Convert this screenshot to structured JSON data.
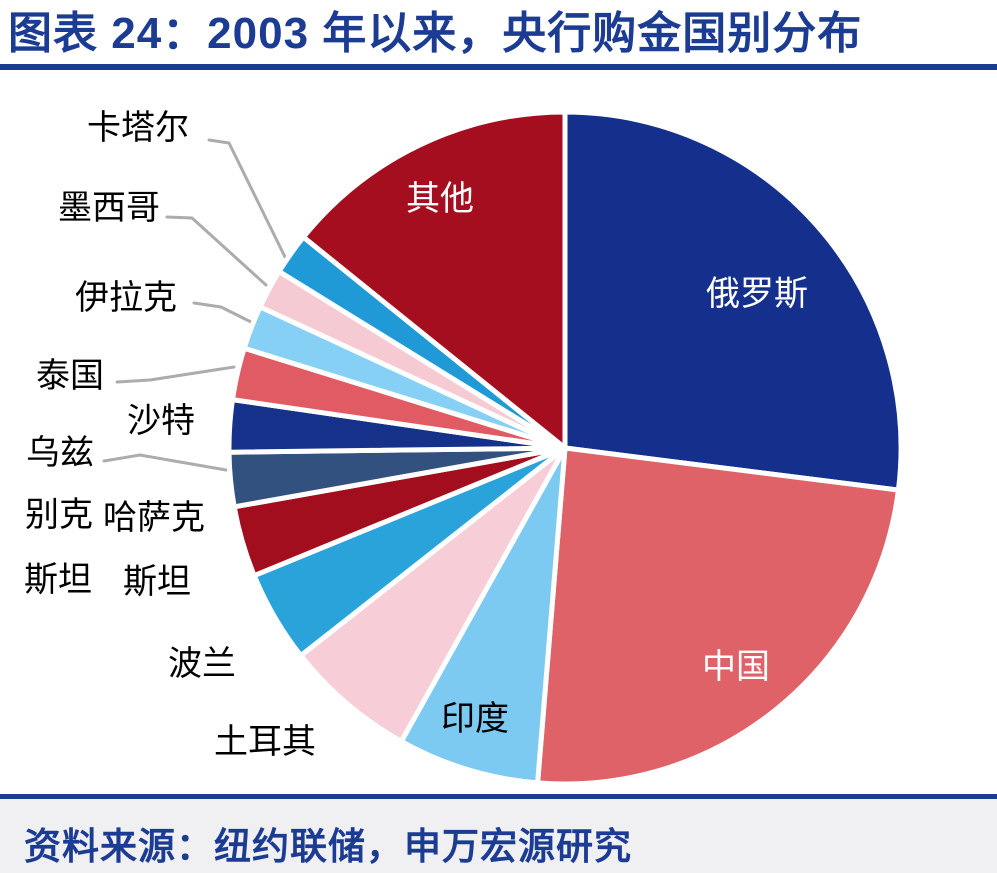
{
  "header": {
    "title": "图表 24：2003 年以来，央行购金国别分布"
  },
  "chart_data": {
    "type": "pie",
    "title": "2003 年以来，央行购金国别分布",
    "figure_number": "图表 24",
    "legend_position": "none",
    "start_angle_deg": 0,
    "direction": "clockwise",
    "value_format": "percent_share_estimated_from_arc_angles",
    "slices": [
      {
        "id": "russia",
        "label": "俄罗斯",
        "value": 27.0,
        "color": "#14308C",
        "label_placement": "inside-white"
      },
      {
        "id": "china",
        "label": "中国",
        "value": 24.3,
        "color": "#DE6267",
        "label_placement": "inside-white"
      },
      {
        "id": "india",
        "label": "印度",
        "value": 6.8,
        "color": "#7CC9F1",
        "label_placement": "inside-black"
      },
      {
        "id": "turkey",
        "label": "土耳其",
        "value": 6.3,
        "color": "#F7CED7",
        "label_placement": "outside"
      },
      {
        "id": "poland",
        "label": "波兰",
        "value": 4.4,
        "color": "#2AA3DB",
        "label_placement": "outside"
      },
      {
        "id": "kazakhstan",
        "label": "哈萨克斯坦",
        "value": 3.4,
        "color": "#A30E1E",
        "label_placement": "outside"
      },
      {
        "id": "uzbekistan",
        "label": "乌兹别克斯坦",
        "value": 2.6,
        "color": "#32517F",
        "label_placement": "outside"
      },
      {
        "id": "saudi-arabia",
        "label": "沙特",
        "value": 2.5,
        "color": "#16318A",
        "label_placement": "outside"
      },
      {
        "id": "thailand",
        "label": "泰国",
        "value": 2.5,
        "color": "#E05B64",
        "label_placement": "outside"
      },
      {
        "id": "iraq",
        "label": "伊拉克",
        "value": 2.1,
        "color": "#85D0F4",
        "label_placement": "outside"
      },
      {
        "id": "mexico",
        "label": "墨西哥",
        "value": 1.9,
        "color": "#F6CAD3",
        "label_placement": "outside"
      },
      {
        "id": "qatar",
        "label": "卡塔尔",
        "value": 2.0,
        "color": "#1F9AD6",
        "label_placement": "outside"
      },
      {
        "id": "other",
        "label": "其他",
        "value": 14.2,
        "color": "#A40E1E",
        "label_placement": "inside-white"
      }
    ]
  },
  "labels": {
    "qatar": "卡塔尔",
    "mexico": "墨西哥",
    "iraq": "伊拉克",
    "thailand": "泰国",
    "saudi": "沙特",
    "uzbekistan_line1": "乌兹",
    "uzbekistan_line2": "别克",
    "uzbekistan_line3": "斯坦",
    "kazakhstan_line1": "哈萨克",
    "kazakhstan_line2": "斯坦",
    "poland": "波兰",
    "turkey": "土耳其",
    "india": "印度",
    "other": "其他",
    "russia": "俄罗斯",
    "china": "中国"
  },
  "footer": {
    "source": "资料来源：纽约联储，申万宏源研究"
  },
  "colors": {
    "accent_navy": "#1B3C92",
    "leader_line_gray": "#ACACAC",
    "footer_strip_gray": "#F0F0F2",
    "background": "#FFFFFF"
  }
}
